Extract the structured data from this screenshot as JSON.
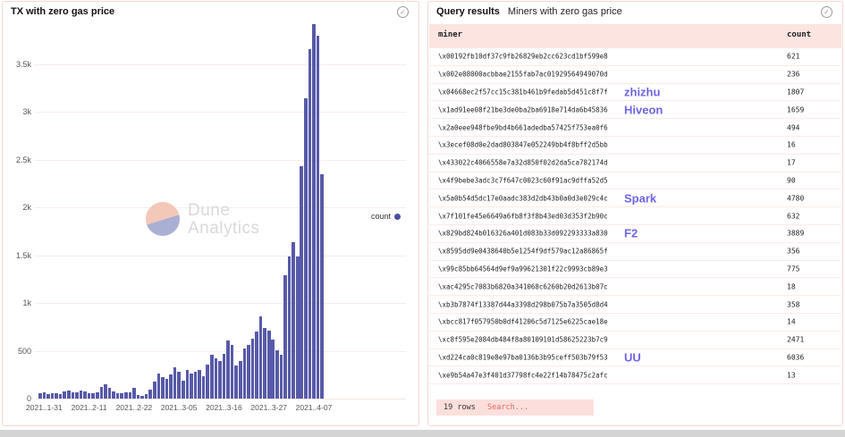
{
  "left_panel": {
    "title": "TX with zero gas price",
    "status_icon": "circled-checkmark",
    "legend": {
      "label": "count",
      "color": "#4b4e9e"
    },
    "watermark": {
      "line1": "Dune",
      "line2": "Analytics"
    },
    "chart_data": {
      "type": "bar",
      "title": "TX with zero gas price",
      "series_name": "count",
      "bar_color": "#575aa8",
      "grid": true,
      "legend_position": "right",
      "ylim": [
        0,
        4000
      ],
      "y_tick_labels": [
        "0",
        "500",
        "1k",
        "1.5k",
        "2k",
        "2.5k",
        "3k",
        "3.5k"
      ],
      "y_tick_values": [
        0,
        500,
        1000,
        1500,
        2000,
        2500,
        3000,
        3500
      ],
      "x_tick_labels": [
        "2021..1-31",
        "2021..2-11",
        "2021..2-22",
        "2021..3-05",
        "2021..3-16",
        "2021..3-27",
        "2021..4-07"
      ],
      "x_tick_indices": [
        1,
        12,
        23,
        34,
        45,
        56,
        67
      ],
      "values": [
        55,
        65,
        45,
        60,
        55,
        45,
        75,
        80,
        70,
        65,
        80,
        75,
        60,
        55,
        65,
        120,
        150,
        115,
        75,
        60,
        55,
        70,
        65,
        110,
        35,
        30,
        50,
        95,
        175,
        265,
        220,
        205,
        250,
        330,
        285,
        190,
        300,
        265,
        285,
        300,
        235,
        360,
        455,
        425,
        395,
        470,
        610,
        565,
        345,
        395,
        520,
        565,
        630,
        705,
        865,
        740,
        710,
        615,
        505,
        460,
        1290,
        1490,
        1640,
        1490,
        2430,
        3140,
        3660,
        3920,
        3800,
        2350
      ]
    }
  },
  "right_panel": {
    "title_bold": "Query results",
    "title_rest": "Miners with zero gas price",
    "status_icon": "circled-checkmark",
    "table": {
      "columns": [
        "miner",
        "count"
      ],
      "rows": [
        {
          "miner": "\\x00192fb10df37c9fb26829eb2cc623cd1bf599e8",
          "tag": "",
          "count": "621"
        },
        {
          "miner": "\\x002e08000acbbae2155fab7ac01929564949070d",
          "tag": "",
          "count": "236"
        },
        {
          "miner": "\\x04668ec2f57cc15c381b461b9fedab5d451c8f7f",
          "tag": "zhizhu",
          "count": "1807"
        },
        {
          "miner": "\\x1ad91ee08f21be3de0ba2ba6918e714da6b45836",
          "tag": "Hiveon",
          "count": "1659"
        },
        {
          "miner": "\\x2a0eee948fbe9bd4b661adedba57425f753ea0f6",
          "tag": "",
          "count": "494"
        },
        {
          "miner": "\\x3ecef08d0e2dad803847e052249bb4f8bff2d5bb",
          "tag": "",
          "count": "16"
        },
        {
          "miner": "\\x433022c4066558e7a32d850f02d2da5ca782174d",
          "tag": "",
          "count": "17"
        },
        {
          "miner": "\\x4f9bebe3adc3c7f647c0023c60f91ac9dffa52d5",
          "tag": "",
          "count": "90"
        },
        {
          "miner": "\\x5a0b54d5dc17e0aadc383d2db43b0a0d3e029c4c",
          "tag": "Spark",
          "count": "4780"
        },
        {
          "miner": "\\x7f101fe45e6649a6fb8f3f8b43ed03d353f2b90c",
          "tag": "",
          "count": "632"
        },
        {
          "miner": "\\x829bd824b016326a401d083b33d092293333a830",
          "tag": "F2",
          "count": "3889"
        },
        {
          "miner": "\\x8595dd9e0438640b5e1254f9df579ac12a86865f",
          "tag": "",
          "count": "356"
        },
        {
          "miner": "\\x99c85bb64564d9ef9a99621301f22c9993cb89e3",
          "tag": "",
          "count": "775"
        },
        {
          "miner": "\\xac4295c7083b6820a341068c6260b20d2613b07c",
          "tag": "",
          "count": "18"
        },
        {
          "miner": "\\xb3b7874f13387d44a3398d298b075b7a3505d8d4",
          "tag": "",
          "count": "358"
        },
        {
          "miner": "\\xbcc817f057950b0df41206c5d7125e6225cae18e",
          "tag": "",
          "count": "14"
        },
        {
          "miner": "\\xc8f595e2084db484f8a80109101d58625223b7c9",
          "tag": "",
          "count": "2471"
        },
        {
          "miner": "\\xd224ca0c819e8e97ba0136b3b95ceff503b79f53",
          "tag": "UU",
          "count": "6036"
        },
        {
          "miner": "\\xe9b54a47e3f401d37798fc4e22f14b78475c2afc",
          "tag": "",
          "count": "13"
        }
      ]
    },
    "footer": {
      "rows_label": "19 rows",
      "search_placeholder": "Search..."
    }
  },
  "colors": {
    "bar": "#575aa8",
    "tag_text": "#7064e4",
    "table_header_bg": "#fce4e1",
    "footer_chip_bg": "#fbdfdc",
    "search_text": "#e4695e",
    "panel_border": "#f3d9d5",
    "bottom_strip": "#d4d4d4",
    "watermark_top": "#f4c8b9",
    "watermark_bottom": "#aab0d3"
  }
}
